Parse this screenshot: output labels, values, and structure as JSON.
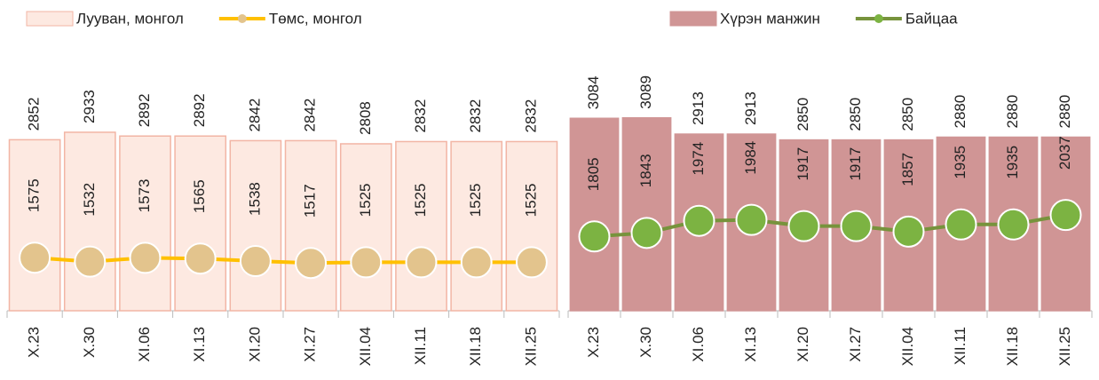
{
  "chart_data": [
    {
      "type": "combo",
      "categories": [
        "X.23",
        "X.30",
        "XI.06",
        "XI.13",
        "XI.20",
        "XI.27",
        "XII.04",
        "XII.11",
        "XII.18",
        "XII.25"
      ],
      "series": [
        {
          "name": "Лууван, монгол",
          "type": "bar",
          "color": "#fde9e1",
          "stroke": "#f2b5a5",
          "values": [
            2852,
            2933,
            2892,
            2892,
            2842,
            2842,
            2808,
            2832,
            2832,
            2832
          ]
        },
        {
          "name": "Төмс, монгол",
          "type": "line",
          "axis": "y2",
          "color": "#ffc000",
          "marker_color": "#e3c48d",
          "values": [
            1575,
            1532,
            1573,
            1565,
            1538,
            1517,
            1525,
            1525,
            1525,
            1525
          ]
        }
      ],
      "ylim": [
        1000,
        4000
      ],
      "y2lim": [
        1000,
        4000
      ]
    },
    {
      "type": "combo",
      "categories": [
        "X.23",
        "X.30",
        "XI.06",
        "XI.13",
        "XI.20",
        "XI.27",
        "XII.04",
        "XII.11",
        "XII.18",
        "XII.25"
      ],
      "series": [
        {
          "name": "Хүрэн манжин",
          "type": "bar",
          "color": "#d09595",
          "stroke": "#d09595",
          "values": [
            3084,
            3089,
            2913,
            2913,
            2850,
            2850,
            2850,
            2880,
            2880,
            2880
          ]
        },
        {
          "name": "Байцаа",
          "type": "line",
          "axis": "y2",
          "color": "#77933c",
          "marker_color": "#7cb342",
          "values": [
            1805,
            1843,
            1974,
            1984,
            1917,
            1917,
            1857,
            1935,
            1935,
            2037
          ]
        }
      ],
      "ylim": [
        1000,
        4000
      ],
      "y2lim": [
        1000,
        4000
      ]
    }
  ]
}
